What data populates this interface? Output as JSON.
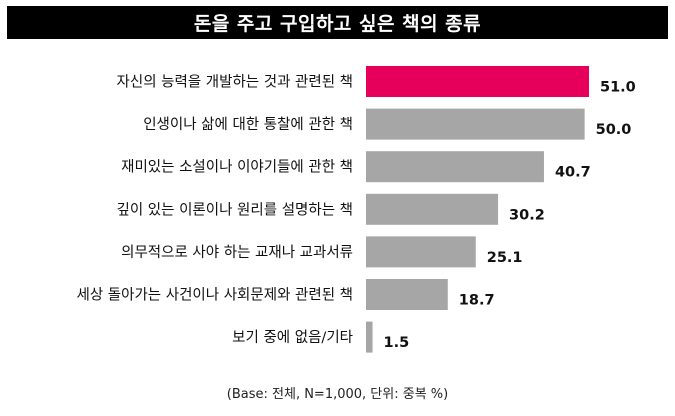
{
  "chart_data": {
    "type": "bar",
    "orientation": "horizontal",
    "title": "돈을 주고 구입하고 싶은 책의 종류",
    "categories": [
      "자신의 능력을 개발하는 것과 관련된 책",
      "인생이나 삶에 대한 통찰에 관한 책",
      "재미있는 소설이나 이야기들에 관한 책",
      "깊이 있는 이론이나 원리를 설명하는 책",
      "의무적으로 사야 하는 교재나 교과서류",
      "세상 돌아가는 사건이나 사회문제와 관련된 책",
      "보기 중에 없음/기타"
    ],
    "values": [
      51.0,
      50.0,
      40.7,
      30.2,
      25.1,
      18.7,
      1.5
    ],
    "value_labels": [
      "51.0",
      "50.0",
      "40.7",
      "30.2",
      "25.1",
      "18.7",
      "1.5"
    ],
    "highlight_index": 0,
    "xlim": [
      0,
      51.0
    ],
    "grid": false,
    "legend": "none",
    "colors": {
      "highlight": "#e6005c",
      "bar": "#a6a6a6"
    },
    "note": "(Base: 전체, N=1,000, 단위: 중복 %)"
  }
}
